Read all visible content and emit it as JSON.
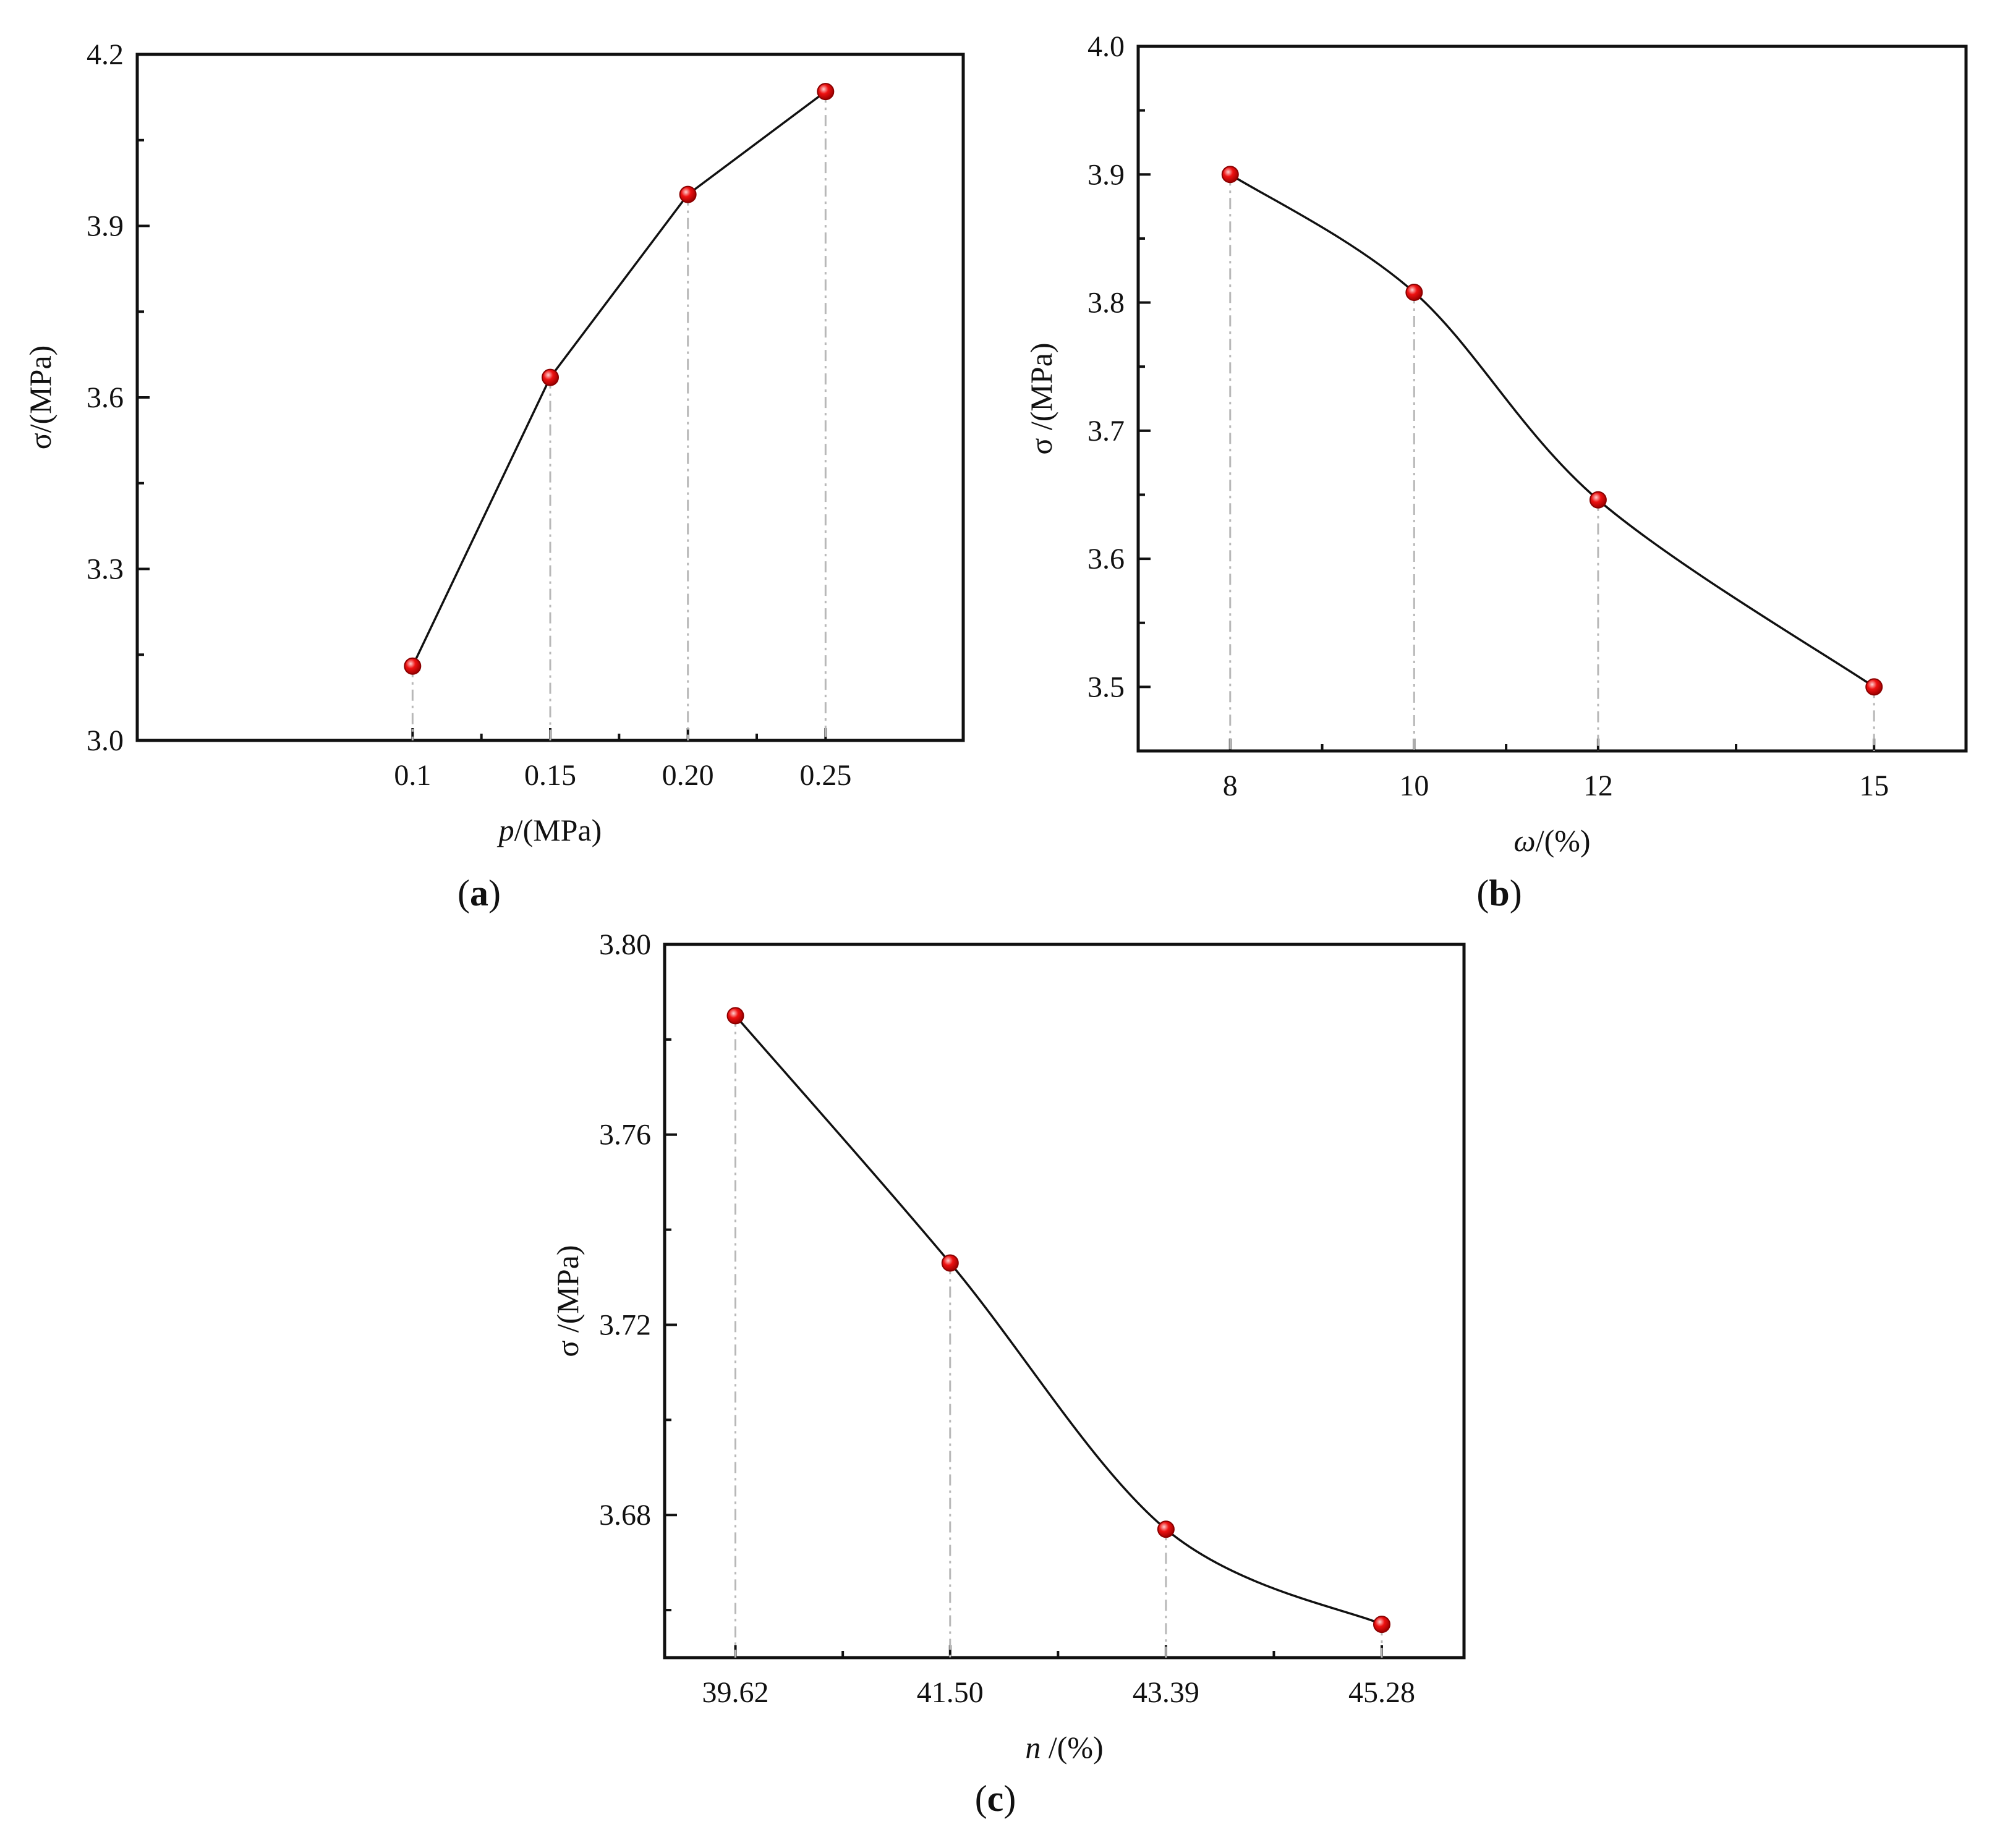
{
  "colors": {
    "marker": "#ee1111",
    "line": "#111111",
    "dropline": "#b8b8b8"
  },
  "chart_data": [
    {
      "id": "a",
      "type": "line",
      "panel_label": "a",
      "x_tick_labels": [
        "0.1",
        "0.15",
        "0.20",
        "0.25"
      ],
      "x": [
        0.1,
        0.15,
        0.2,
        0.25
      ],
      "y": [
        3.13,
        3.635,
        3.955,
        4.135
      ],
      "xlabel_var": "p",
      "xlabel_rest": "/(MPa)",
      "ylabel": "σ/(MPa)",
      "xlim": [
        0.0,
        0.3
      ],
      "ylim": [
        3.0,
        4.2
      ],
      "yticks": [
        3.0,
        3.3,
        3.6,
        3.9,
        4.2
      ],
      "ytick_labels": [
        "3.0",
        "3.3",
        "3.6",
        "3.9",
        "4.2"
      ],
      "smooth": false,
      "grid": false
    },
    {
      "id": "b",
      "type": "line",
      "panel_label": "b",
      "x_tick_labels": [
        "8",
        "10",
        "12",
        "15"
      ],
      "x": [
        8,
        10,
        12,
        15
      ],
      "y": [
        3.9,
        3.808,
        3.646,
        3.5
      ],
      "xlabel_var": "ω",
      "xlabel_rest": "/(%)",
      "ylabel": "σ /(MPa)",
      "xlim": [
        7,
        16
      ],
      "ylim": [
        3.45,
        4.0
      ],
      "yticks": [
        3.5,
        3.6,
        3.7,
        3.8,
        3.9,
        4.0
      ],
      "ytick_labels": [
        "3.5",
        "3.6",
        "3.7",
        "3.8",
        "3.9",
        "4.0"
      ],
      "smooth": true,
      "grid": false
    },
    {
      "id": "c",
      "type": "line",
      "panel_label": "c",
      "x_tick_labels": [
        "39.62",
        "41.50",
        "43.39",
        "45.28"
      ],
      "x": [
        39.62,
        41.5,
        43.39,
        45.28
      ],
      "y": [
        3.785,
        3.733,
        3.677,
        3.657
      ],
      "xlabel_var": "n",
      "xlabel_rest": " /(%)",
      "ylabel": "σ /(MPa)",
      "xlim": [
        39.0,
        46.0
      ],
      "ylim": [
        3.65,
        3.8
      ],
      "yticks": [
        3.68,
        3.72,
        3.76,
        3.8
      ],
      "ytick_labels": [
        "3.68",
        "3.72",
        "3.76",
        "3.80"
      ],
      "smooth": true,
      "grid": false
    }
  ]
}
